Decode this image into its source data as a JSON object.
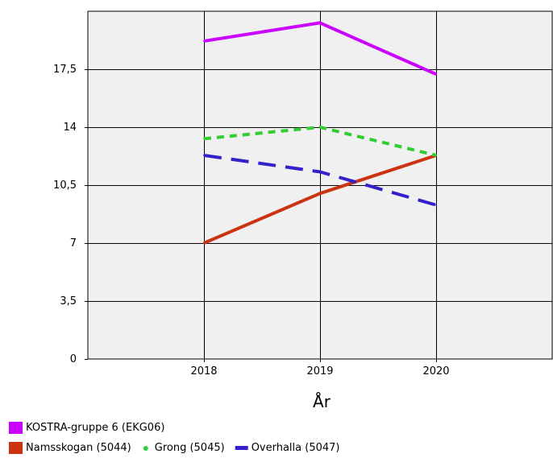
{
  "chart_data": {
    "type": "line",
    "title": "",
    "xlabel": "År",
    "ylabel": "",
    "x_range": [
      2017,
      2021
    ],
    "ylim": [
      0,
      21
    ],
    "grid": true,
    "categories": [
      "2018",
      "2019",
      "2020"
    ],
    "x_ticks": [
      "2018",
      "2019",
      "2020"
    ],
    "y_ticks": [
      "0",
      "3,5",
      "7",
      "10,5",
      "14",
      "17,5"
    ],
    "y_tick_values": [
      0,
      3.5,
      7,
      10.5,
      14,
      17.5
    ],
    "legend_position": "bottom-left",
    "series": [
      {
        "name": "KOSTRA-gruppe 6 (EKG06)",
        "color": "#cc00ff",
        "style": "solid",
        "x": [
          2018,
          2019,
          2020
        ],
        "values": [
          19.2,
          20.3,
          17.2
        ]
      },
      {
        "name": "Namsskogan (5044)",
        "color": "#cc3311",
        "style": "solid",
        "x": [
          2018,
          2019,
          2020
        ],
        "values": [
          7.0,
          10.0,
          12.3
        ]
      },
      {
        "name": "Grong (5045)",
        "color": "#33cc33",
        "style": "dashed",
        "x": [
          2018,
          2019,
          2020
        ],
        "values": [
          13.3,
          14.0,
          12.3
        ]
      },
      {
        "name": "Overhalla (5047)",
        "color": "#3322cc",
        "style": "longdash",
        "x": [
          2018,
          2019,
          2020
        ],
        "values": [
          12.3,
          11.3,
          9.3
        ]
      }
    ]
  }
}
